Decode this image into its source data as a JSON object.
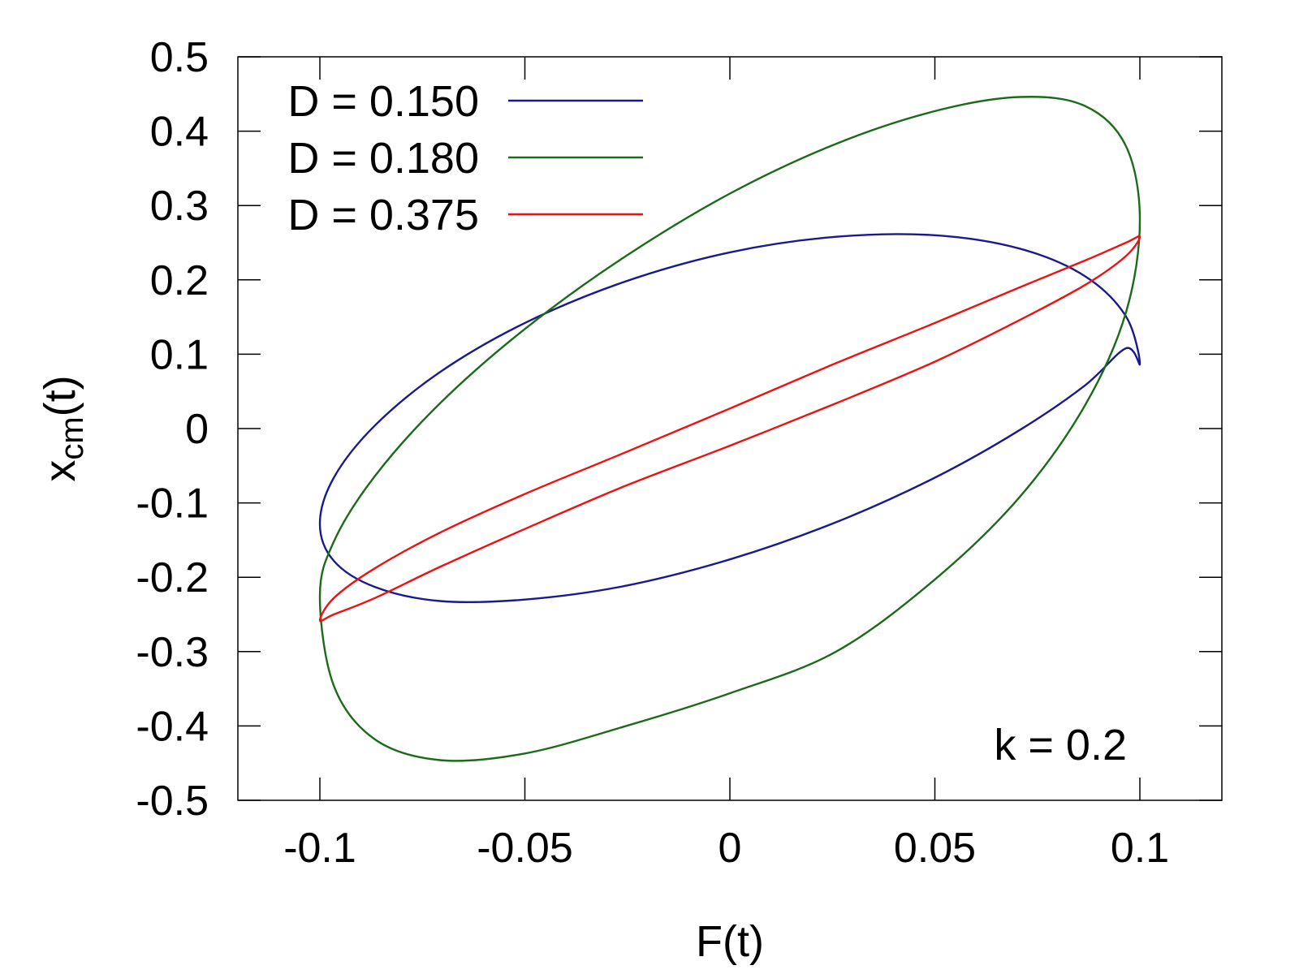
{
  "chart_data": {
    "type": "line",
    "title": "",
    "xlabel": "F(t)",
    "ylabel": {
      "base": "x",
      "sub": "cm",
      "suffix": "(t)"
    },
    "xlim": [
      -0.12,
      0.12
    ],
    "ylim": [
      -0.5,
      0.5
    ],
    "xticks": [
      -0.1,
      -0.05,
      0,
      0.05,
      0.1
    ],
    "xtick_labels": [
      "-0.1",
      "-0.05",
      "0",
      "0.05",
      "0.1"
    ],
    "yticks": [
      -0.5,
      -0.4,
      -0.3,
      -0.2,
      -0.1,
      0,
      0.1,
      0.2,
      0.3,
      0.4,
      0.5
    ],
    "ytick_labels": [
      "-0.5",
      "-0.4",
      "-0.3",
      "-0.2",
      "-0.1",
      "0",
      "0.1",
      "0.2",
      "0.3",
      "0.4",
      "0.5"
    ],
    "grid": false,
    "legend_position": "top-left",
    "annotation": "k = 0.2",
    "series": [
      {
        "name": "D = 0.150",
        "color": "#1a1a8c",
        "curve": "ellipse-loop",
        "x": [
          0.1,
          0.0966,
          0.0866,
          0.0707,
          0.05,
          0.0259,
          0.0,
          -0.0259,
          -0.05,
          -0.0707,
          -0.0866,
          -0.0966,
          -0.1,
          -0.0966,
          -0.0866,
          -0.0707,
          -0.05,
          -0.0259,
          0.0,
          0.0259,
          0.05,
          0.0707,
          0.0866,
          0.0966,
          0.1
        ],
        "y": [
          0.087,
          0.151,
          0.205,
          0.242,
          0.26,
          0.258,
          0.237,
          0.197,
          0.142,
          0.076,
          0.004,
          -0.066,
          -0.128,
          -0.178,
          -0.213,
          -0.232,
          -0.23,
          -0.212,
          -0.176,
          -0.126,
          -0.066,
          -0.002,
          0.058,
          0.108,
          0.087
        ]
      },
      {
        "name": "D = 0.180",
        "color": "#1b6b1b",
        "curve": "ellipse-loop",
        "x": [
          0.1,
          0.0966,
          0.0866,
          0.0707,
          0.05,
          0.0259,
          0.0,
          -0.0259,
          -0.05,
          -0.0707,
          -0.0866,
          -0.0966,
          -0.1,
          -0.0966,
          -0.0866,
          -0.0707,
          -0.05,
          -0.0259,
          0.0,
          0.0259,
          0.05,
          0.0707,
          0.0866,
          0.0966,
          0.1
        ],
        "y": [
          0.28,
          0.38,
          0.434,
          0.446,
          0.427,
          0.383,
          0.316,
          0.23,
          0.134,
          0.034,
          -0.064,
          -0.152,
          -0.226,
          -0.346,
          -0.418,
          -0.446,
          -0.437,
          -0.401,
          -0.356,
          -0.3,
          -0.203,
          -0.092,
          0.031,
          0.156,
          0.28
        ]
      },
      {
        "name": "D = 0.375",
        "color": "#ee1111",
        "curve": "ellipse-loop",
        "x": [
          0.1,
          0.0966,
          0.0866,
          0.0707,
          0.05,
          0.0259,
          0.0,
          -0.0259,
          -0.05,
          -0.0707,
          -0.0866,
          -0.0966,
          -0.1,
          -0.0966,
          -0.0866,
          -0.0707,
          -0.05,
          -0.0259,
          0.0,
          0.0259,
          0.05,
          0.0707,
          0.0866,
          0.0966,
          0.1
        ],
        "y": [
          0.258,
          0.25,
          0.226,
          0.19,
          0.142,
          0.088,
          0.027,
          -0.033,
          -0.088,
          -0.14,
          -0.188,
          -0.228,
          -0.258,
          -0.25,
          -0.228,
          -0.186,
          -0.135,
          -0.078,
          -0.023,
          0.034,
          0.09,
          0.146,
          0.193,
          0.232,
          0.258
        ]
      }
    ]
  }
}
